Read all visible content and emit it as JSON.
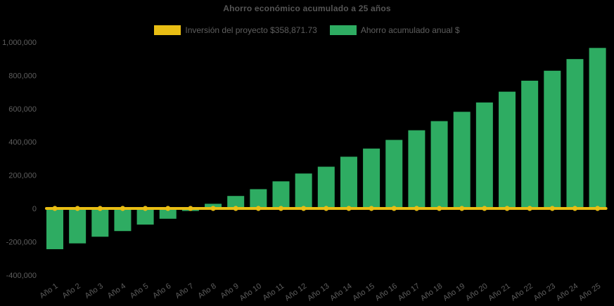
{
  "title": "Ahorro económico acumulado a 25 años",
  "legend": {
    "investment": {
      "label": "Inversión del proyecto $358,871.73",
      "color": "#E9BE14"
    },
    "savings": {
      "label": "Ahorro acumulado anual $",
      "color": "#2EAC62"
    }
  },
  "colors": {
    "background": "#000000",
    "text": "#5E5E5E",
    "title_text": "#555555",
    "investment_yellow": "#E9BE14",
    "savings_green": "#2EAC62"
  },
  "chart_data": {
    "type": "bar",
    "title": "Ahorro económico acumulado a 25 años",
    "xlabel": "",
    "ylabel": "",
    "grid": false,
    "legend_position": "top",
    "ylim": [
      -400000,
      1000000
    ],
    "yticks": [
      {
        "value": 1000000,
        "label": "1,000,000"
      },
      {
        "value": 800000,
        "label": "800,000"
      },
      {
        "value": 600000,
        "label": "600,000"
      },
      {
        "value": 400000,
        "label": "400,000"
      },
      {
        "value": 200000,
        "label": "200,000"
      },
      {
        "value": 0,
        "label": "0"
      },
      {
        "value": -200000,
        "label": "-200,000"
      },
      {
        "value": -400000,
        "label": "-400,000"
      }
    ],
    "categories": [
      "Año 1",
      "Año 2",
      "Año 3",
      "Año 4",
      "Año 5",
      "Año 6",
      "Año 7",
      "Año 8",
      "Año 9",
      "Año 10",
      "Año 11",
      "Año 12",
      "Año 13",
      "Año 14",
      "Año 15",
      "Año 16",
      "Año 17",
      "Año 18",
      "Año 19",
      "Año 20",
      "Año 21",
      "Año 22",
      "Año 23",
      "Año 24",
      "Año 25"
    ],
    "series": [
      {
        "name": "Inversión del proyecto $358,871.73",
        "type": "line",
        "color": "#E9BE14",
        "values": [
          0,
          0,
          0,
          0,
          0,
          0,
          0,
          0,
          0,
          0,
          0,
          0,
          0,
          0,
          0,
          0,
          0,
          0,
          0,
          0,
          0,
          0,
          0,
          0,
          0
        ]
      },
      {
        "name": "Ahorro acumulado anual $",
        "type": "bar",
        "color": "#2EAC62",
        "values": [
          -245000,
          -210000,
          -170000,
          -136000,
          -97000,
          -62000,
          -15000,
          28000,
          75000,
          116000,
          163000,
          210000,
          251000,
          311000,
          360000,
          412000,
          470000,
          525000,
          581000,
          637000,
          702000,
          768000,
          828000,
          898000,
          965000
        ]
      }
    ]
  }
}
